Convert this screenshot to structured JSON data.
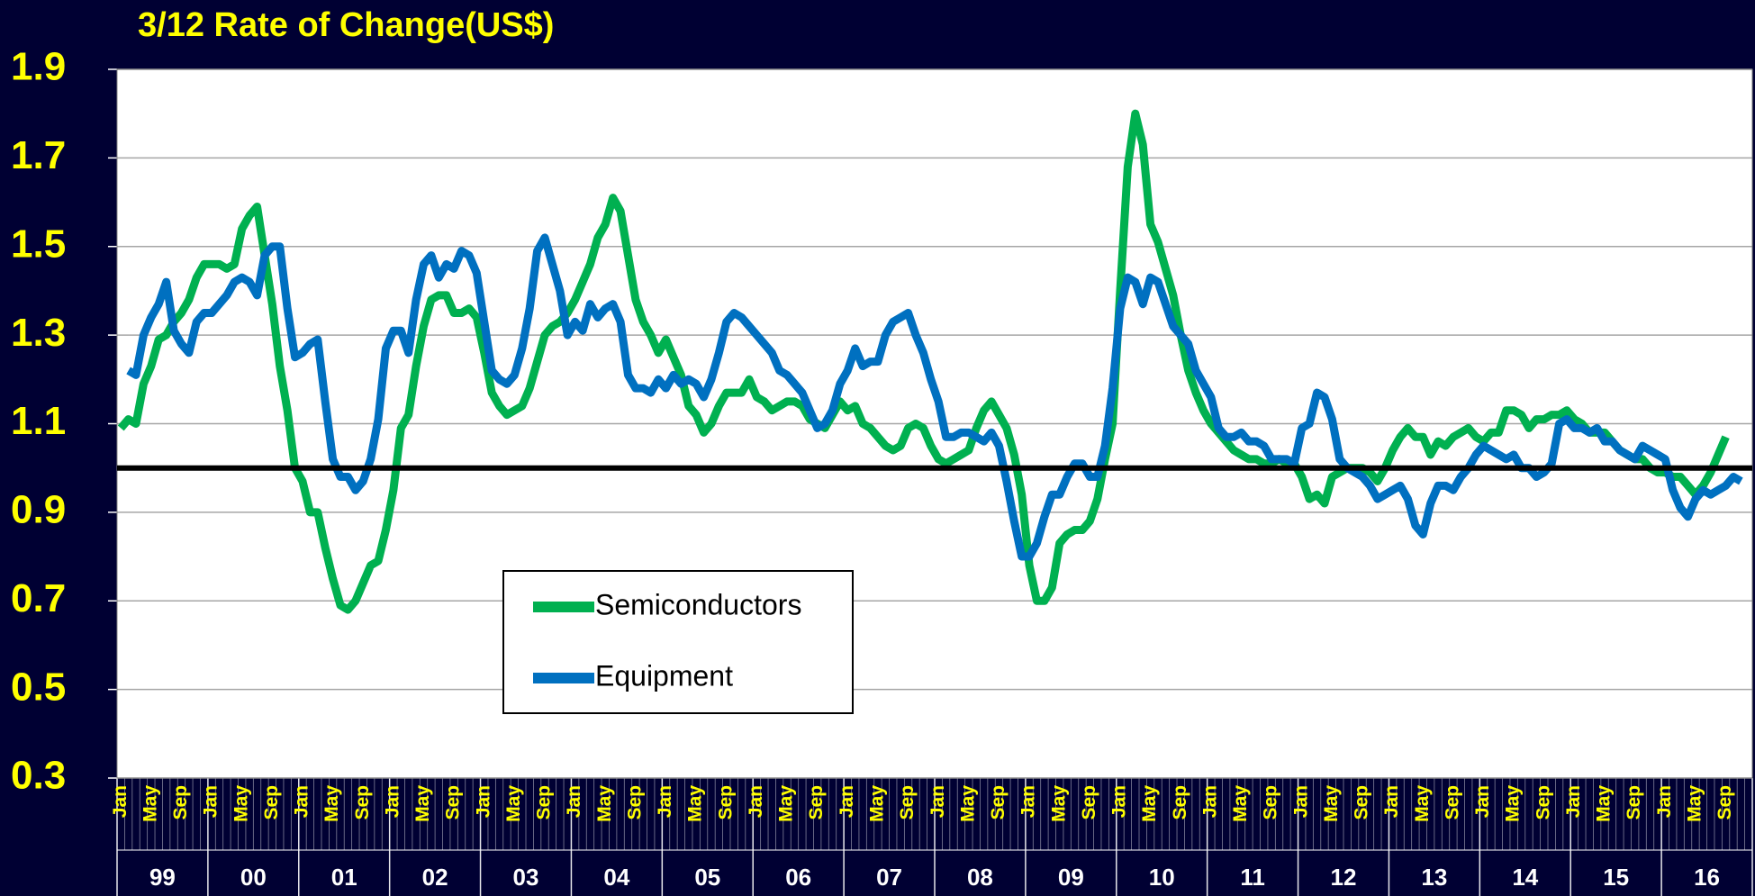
{
  "chart_data": {
    "type": "line",
    "title": "3/12 Rate of Change(US$)",
    "categories": [
      "Jan",
      null,
      null,
      null,
      "May",
      null,
      null,
      null,
      "Sep",
      null,
      null,
      null,
      "Jan",
      null,
      null,
      null,
      "May",
      null,
      null,
      null,
      "Sep",
      null,
      null,
      null,
      "Jan",
      null,
      null,
      null,
      "May",
      null,
      null,
      null,
      "Sep",
      null,
      null,
      null,
      "Jan",
      null,
      null,
      null,
      "May",
      null,
      null,
      null,
      "Sep",
      null,
      null,
      null,
      "Jan",
      null,
      null,
      null,
      "May",
      null,
      null,
      null,
      "Sep",
      null,
      null,
      null,
      "Jan",
      null,
      null,
      null,
      "May",
      null,
      null,
      null,
      "Sep",
      null,
      null,
      null,
      "Jan",
      null,
      null,
      null,
      "May",
      null,
      null,
      null,
      "Sep",
      null,
      null,
      null,
      "Jan",
      null,
      null,
      null,
      "May",
      null,
      null,
      null,
      "Sep",
      null,
      null,
      null,
      "Jan",
      null,
      null,
      null,
      "May",
      null,
      null,
      null,
      "Sep",
      null,
      null,
      null,
      "Jan",
      null,
      null,
      null,
      "May",
      null,
      null,
      null,
      "Sep",
      null,
      null,
      null,
      "Jan",
      null,
      null,
      null,
      "May",
      null,
      null,
      null,
      "Sep",
      null,
      null,
      null,
      "Jan",
      null,
      null,
      null,
      "May",
      null,
      null,
      null,
      "Sep",
      null,
      null,
      null,
      "Jan",
      null,
      null,
      null,
      "May",
      null,
      null,
      null,
      "Sep",
      null,
      null,
      null,
      "Jan",
      null,
      null,
      null,
      "May",
      null,
      null,
      null,
      "Sep",
      null,
      null,
      null,
      "Jan",
      null,
      null,
      null,
      "May",
      null,
      null,
      null,
      "Sep",
      null,
      null,
      null,
      "Jan",
      null,
      null,
      null,
      "May",
      null,
      null,
      null,
      "Sep",
      null,
      null,
      null,
      "Jan",
      null,
      null,
      null,
      "May",
      null,
      null,
      null,
      "Sep",
      null,
      null,
      null,
      "Jan",
      null,
      null,
      null,
      "May",
      null,
      null,
      null,
      "Sep",
      null,
      null,
      null
    ],
    "year_groups": [
      "99",
      "00",
      "01",
      "02",
      "03",
      "04",
      "05",
      "06",
      "07",
      "08",
      "09",
      "10",
      "11",
      "12",
      "13",
      "14",
      "15",
      "16"
    ],
    "series": [
      {
        "name": "Semiconductors",
        "color": "#00b050",
        "values": [
          1.09,
          1.11,
          1.1,
          1.19,
          1.23,
          1.29,
          1.3,
          1.33,
          1.35,
          1.38,
          1.43,
          1.46,
          1.46,
          1.46,
          1.45,
          1.46,
          1.54,
          1.57,
          1.59,
          1.48,
          1.37,
          1.23,
          1.13,
          1.0,
          0.97,
          0.9,
          0.9,
          0.82,
          0.75,
          0.69,
          0.68,
          0.7,
          0.74,
          0.78,
          0.79,
          0.86,
          0.95,
          1.09,
          1.12,
          1.23,
          1.32,
          1.38,
          1.39,
          1.39,
          1.35,
          1.35,
          1.36,
          1.34,
          1.26,
          1.17,
          1.14,
          1.12,
          1.13,
          1.14,
          1.18,
          1.24,
          1.3,
          1.32,
          1.33,
          1.35,
          1.38,
          1.42,
          1.46,
          1.52,
          1.55,
          1.61,
          1.58,
          1.48,
          1.38,
          1.33,
          1.3,
          1.26,
          1.29,
          1.25,
          1.21,
          1.14,
          1.12,
          1.08,
          1.1,
          1.14,
          1.17,
          1.17,
          1.17,
          1.2,
          1.16,
          1.15,
          1.13,
          1.14,
          1.15,
          1.15,
          1.14,
          1.11,
          1.1,
          1.09,
          1.12,
          1.15,
          1.13,
          1.14,
          1.1,
          1.09,
          1.07,
          1.05,
          1.04,
          1.05,
          1.09,
          1.1,
          1.09,
          1.05,
          1.02,
          1.01,
          1.02,
          1.03,
          1.04,
          1.09,
          1.13,
          1.15,
          1.12,
          1.09,
          1.03,
          0.94,
          0.78,
          0.7,
          0.7,
          0.73,
          0.83,
          0.85,
          0.86,
          0.86,
          0.88,
          0.93,
          1.02,
          1.1,
          1.4,
          1.68,
          1.8,
          1.73,
          1.55,
          1.51,
          1.45,
          1.39,
          1.3,
          1.22,
          1.17,
          1.13,
          1.1,
          1.08,
          1.06,
          1.04,
          1.03,
          1.02,
          1.02,
          1.01,
          1.01,
          1.02,
          1.01,
          1.01,
          0.98,
          0.93,
          0.94,
          0.92,
          0.98,
          0.99,
          1.0,
          1.0,
          1.0,
          0.99,
          0.97,
          1.0,
          1.04,
          1.07,
          1.09,
          1.07,
          1.07,
          1.03,
          1.06,
          1.05,
          1.07,
          1.08,
          1.09,
          1.07,
          1.06,
          1.08,
          1.08,
          1.13,
          1.13,
          1.12,
          1.09,
          1.11,
          1.11,
          1.12,
          1.12,
          1.13,
          1.11,
          1.1,
          1.08,
          1.08,
          1.08,
          1.06,
          1.04,
          1.03,
          1.02,
          1.02,
          1.0,
          0.99,
          0.99,
          0.98,
          0.98,
          0.96,
          0.94,
          0.96,
          0.99,
          1.03,
          1.07,
          null,
          null,
          null
        ]
      },
      {
        "name": "Equipment",
        "color": "#0070c0",
        "values": [
          null,
          1.22,
          1.21,
          1.3,
          1.34,
          1.37,
          1.42,
          1.31,
          1.28,
          1.26,
          1.33,
          1.35,
          1.35,
          1.37,
          1.39,
          1.42,
          1.43,
          1.42,
          1.39,
          1.48,
          1.5,
          1.5,
          1.36,
          1.25,
          1.26,
          1.28,
          1.29,
          1.15,
          1.02,
          0.98,
          0.98,
          0.95,
          0.97,
          1.02,
          1.11,
          1.27,
          1.31,
          1.31,
          1.26,
          1.38,
          1.46,
          1.48,
          1.43,
          1.46,
          1.45,
          1.49,
          1.48,
          1.44,
          1.33,
          1.22,
          1.2,
          1.19,
          1.21,
          1.27,
          1.36,
          1.49,
          1.52,
          1.46,
          1.4,
          1.3,
          1.33,
          1.31,
          1.37,
          1.34,
          1.36,
          1.37,
          1.33,
          1.21,
          1.18,
          1.18,
          1.17,
          1.2,
          1.18,
          1.21,
          1.19,
          1.2,
          1.19,
          1.16,
          1.2,
          1.26,
          1.33,
          1.35,
          1.34,
          1.32,
          1.3,
          1.28,
          1.26,
          1.22,
          1.21,
          1.19,
          1.17,
          1.13,
          1.09,
          1.1,
          1.13,
          1.19,
          1.22,
          1.27,
          1.23,
          1.24,
          1.24,
          1.3,
          1.33,
          1.34,
          1.35,
          1.3,
          1.26,
          1.2,
          1.15,
          1.07,
          1.07,
          1.08,
          1.08,
          1.07,
          1.06,
          1.08,
          1.05,
          0.97,
          0.88,
          0.8,
          0.8,
          0.83,
          0.89,
          0.94,
          0.94,
          0.98,
          1.01,
          1.01,
          0.98,
          0.98,
          1.05,
          1.18,
          1.36,
          1.43,
          1.42,
          1.37,
          1.43,
          1.42,
          1.37,
          1.32,
          1.3,
          1.28,
          1.22,
          1.19,
          1.16,
          1.09,
          1.07,
          1.07,
          1.08,
          1.06,
          1.06,
          1.05,
          1.02,
          1.02,
          1.02,
          1.01,
          1.09,
          1.1,
          1.17,
          1.16,
          1.11,
          1.02,
          1.0,
          0.99,
          0.98,
          0.96,
          0.93,
          0.94,
          0.95,
          0.96,
          0.93,
          0.87,
          0.85,
          0.92,
          0.96,
          0.96,
          0.95,
          0.98,
          1.0,
          1.03,
          1.05,
          1.04,
          1.03,
          1.02,
          1.03,
          1.0,
          1.0,
          0.98,
          0.99,
          1.01,
          1.1,
          1.11,
          1.09,
          1.09,
          1.08,
          1.09,
          1.06,
          1.06,
          1.04,
          1.03,
          1.02,
          1.05,
          1.04,
          1.03,
          1.02,
          0.95,
          0.91,
          0.89,
          0.93,
          0.95,
          0.94,
          0.95,
          0.96,
          0.98,
          0.97,
          null
        ]
      }
    ],
    "reference_line": 1,
    "ylim": [
      0.3,
      1.9
    ],
    "yticks": [
      {
        "value": 0.3,
        "label": "0.3"
      },
      {
        "value": 0.5,
        "label": "0.5"
      },
      {
        "value": 0.7,
        "label": "0.7"
      },
      {
        "value": 0.9,
        "label": "0.9"
      },
      {
        "value": 1.1,
        "label": "1.1"
      },
      {
        "value": 1.3,
        "label": "1.3"
      },
      {
        "value": 1.5,
        "label": "1.5"
      },
      {
        "value": 1.7,
        "label": "1.7"
      },
      {
        "value": 1.9,
        "label": "1.9"
      }
    ],
    "grid": true
  }
}
